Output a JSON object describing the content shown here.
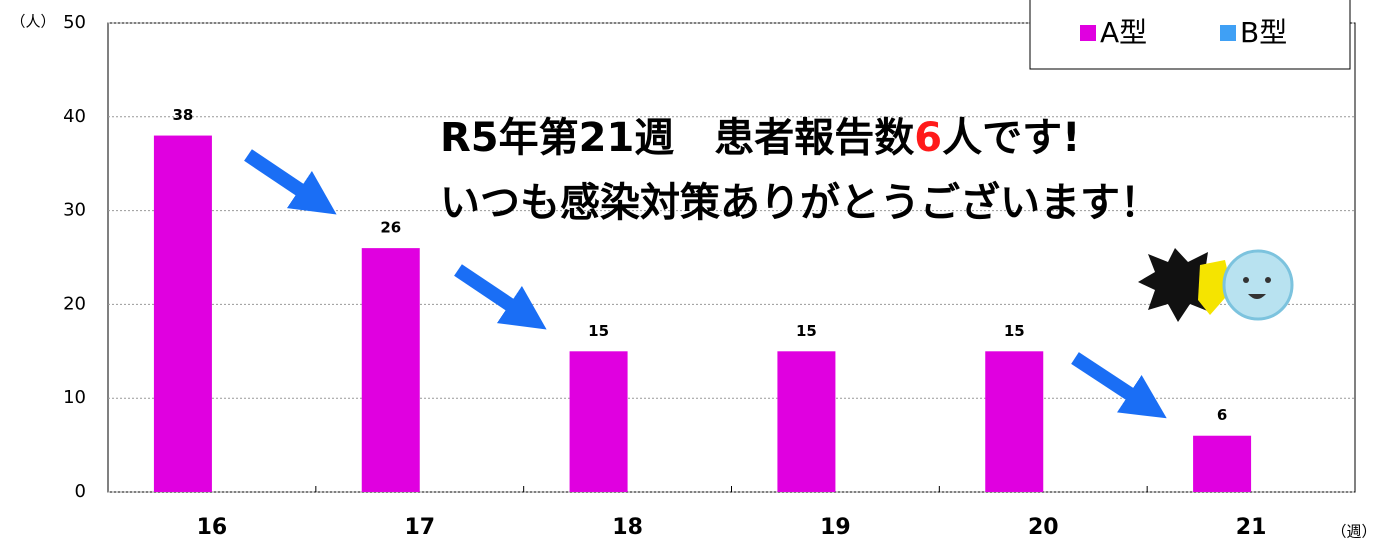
{
  "chart_data": {
    "type": "bar",
    "categories": [
      "16",
      "17",
      "18",
      "19",
      "20",
      "21"
    ],
    "series": [
      {
        "name": "A型",
        "color": "#e000e0",
        "values": [
          38,
          26,
          15,
          15,
          15,
          6
        ]
      },
      {
        "name": "B型",
        "color": "#3fa0f5",
        "values": [
          0,
          0,
          0,
          0,
          0,
          0
        ]
      }
    ],
    "ylim": [
      0,
      50
    ],
    "yticks": [
      0,
      10,
      20,
      30,
      40,
      50
    ],
    "grid": true,
    "y_label": "（人）",
    "x_label": "（週）",
    "legend": "top-right",
    "annotation": {
      "line1": [
        "R5年第21週　患者報告数",
        "6",
        "人です!"
      ],
      "line2": "いつも感染対策ありがとうございます！"
    }
  }
}
